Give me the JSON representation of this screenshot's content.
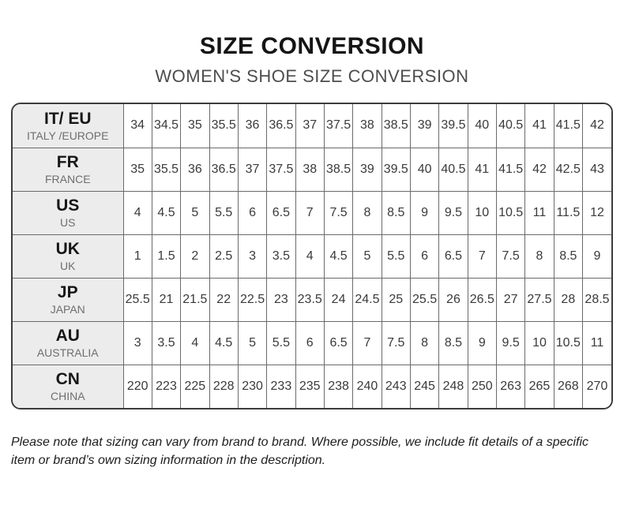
{
  "header": {
    "title": "SIZE CONVERSION",
    "subtitle": "WOMEN'S SHOE SIZE CONVERSION"
  },
  "table": {
    "rows": [
      {
        "code": "IT/ EU",
        "region": "ITALY /EUROPE",
        "sizes": [
          "34",
          "34.5",
          "35",
          "35.5",
          "36",
          "36.5",
          "37",
          "37.5",
          "38",
          "38.5",
          "39",
          "39.5",
          "40",
          "40.5",
          "41",
          "41.5",
          "42"
        ]
      },
      {
        "code": "FR",
        "region": "FRANCE",
        "sizes": [
          "35",
          "35.5",
          "36",
          "36.5",
          "37",
          "37.5",
          "38",
          "38.5",
          "39",
          "39.5",
          "40",
          "40.5",
          "41",
          "41.5",
          "42",
          "42.5",
          "43"
        ]
      },
      {
        "code": "US",
        "region": "US",
        "sizes": [
          "4",
          "4.5",
          "5",
          "5.5",
          "6",
          "6.5",
          "7",
          "7.5",
          "8",
          "8.5",
          "9",
          "9.5",
          "10",
          "10.5",
          "11",
          "11.5",
          "12"
        ]
      },
      {
        "code": "UK",
        "region": "UK",
        "sizes": [
          "1",
          "1.5",
          "2",
          "2.5",
          "3",
          "3.5",
          "4",
          "4.5",
          "5",
          "5.5",
          "6",
          "6.5",
          "7",
          "7.5",
          "8",
          "8.5",
          "9"
        ]
      },
      {
        "code": "JP",
        "region": "JAPAN",
        "sizes": [
          "25.5",
          "21",
          "21.5",
          "22",
          "22.5",
          "23",
          "23.5",
          "24",
          "24.5",
          "25",
          "25.5",
          "26",
          "26.5",
          "27",
          "27.5",
          "28",
          "28.5"
        ]
      },
      {
        "code": "AU",
        "region": "AUSTRALIA",
        "sizes": [
          "3",
          "3.5",
          "4",
          "4.5",
          "5",
          "5.5",
          "6",
          "6.5",
          "7",
          "7.5",
          "8",
          "8.5",
          "9",
          "9.5",
          "10",
          "10.5",
          "11"
        ]
      },
      {
        "code": "CN",
        "region": "CHINA",
        "sizes": [
          "220",
          "223",
          "225",
          "228",
          "230",
          "233",
          "235",
          "238",
          "240",
          "243",
          "245",
          "248",
          "250",
          "263",
          "265",
          "268",
          "270"
        ]
      }
    ]
  },
  "footer": {
    "note": "Please note that sizing can vary from brand to brand. Where possible, we include fit details of a specific item or brand’s own sizing information in the description."
  },
  "colors": {
    "title": "#151515",
    "subtitle": "#4d4d4d",
    "header_cell_bg": "#ececec",
    "border_outer": "#3c3c3c",
    "border_inner": "#6a6a6a",
    "cell_text": "#3a3a3a"
  }
}
